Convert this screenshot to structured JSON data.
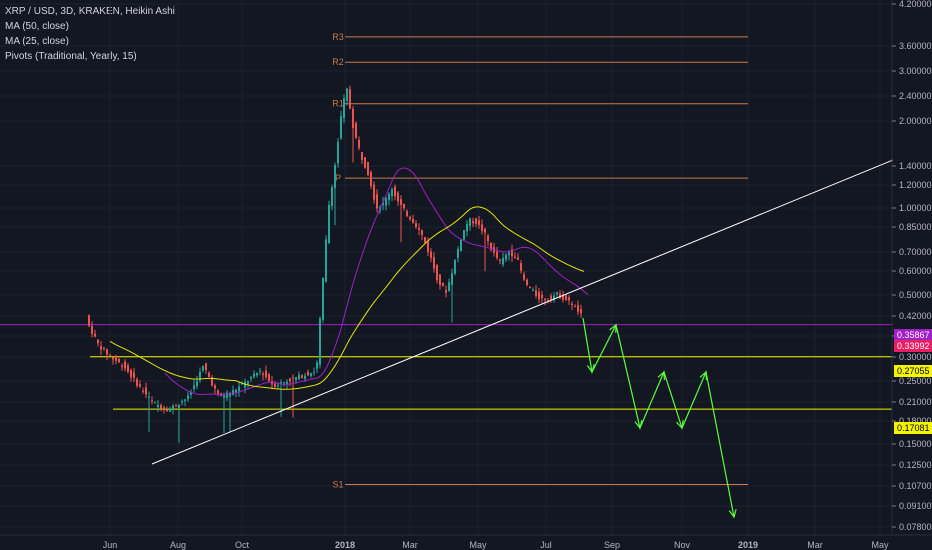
{
  "header": {
    "symbol": "XRP / USD, 3D, KRAKEN, Heikin Ashi",
    "indicator_ma50": "MA (50, close)",
    "indicator_ma25": "MA (25, close)",
    "indicator_pivots": "Pivots (Traditional, Yearly, 15)"
  },
  "chart_data": {
    "type": "line",
    "scale": "log",
    "y_ticks": [
      "4.20000",
      "3.60000",
      "3.00000",
      "2.40000",
      "2.00000",
      "1.40000",
      "1.20000",
      "1.00000",
      "0.85000",
      "0.70000",
      "0.60000",
      "0.50000",
      "0.42000",
      "0.35000",
      "0.30000",
      "0.25000",
      "0.21000",
      "0.18000",
      "0.15000",
      "0.12500",
      "0.10700",
      "0.09100",
      "0.07800"
    ],
    "x_ticks": [
      "Jun",
      "Aug",
      "Oct",
      "2018",
      "Mar",
      "May",
      "Jul",
      "Sep",
      "Nov",
      "2019",
      "Mar",
      "May"
    ],
    "price_tags": [
      {
        "label": "0.35867",
        "value": 0.35867,
        "bg": "#a020c8",
        "fg": "#ffffff"
      },
      {
        "label": "0.33992",
        "value": 0.33992,
        "bg": "#e91e63",
        "fg": "#ffffff"
      },
      {
        "label": "0.27055",
        "value": 0.27055,
        "bg": "#f5f500",
        "fg": "#000000"
      },
      {
        "label": "0.17081",
        "value": 0.17081,
        "bg": "#f5f500",
        "fg": "#000000"
      }
    ],
    "pivots": [
      {
        "label": "R3",
        "value": 4.5
      },
      {
        "label": "R2",
        "value": 3.6
      },
      {
        "label": "R1",
        "value": 2.5
      },
      {
        "label": "P",
        "value": 1.3
      },
      {
        "label": "S1",
        "value": 0.088
      }
    ],
    "levels": [
      {
        "value": 0.35867,
        "color": "#a020c8"
      },
      {
        "value": 0.27055,
        "color": "#f5f500"
      },
      {
        "value": 0.17081,
        "color": "#f5f500"
      }
    ],
    "colors": {
      "up": "#26a69a",
      "down": "#ef5350",
      "ma50": "#e6e600",
      "ma25": "#a020c8",
      "arrow": "#5aff3c",
      "trend": "#ffffff",
      "pivot": "#c77b4e"
    }
  }
}
